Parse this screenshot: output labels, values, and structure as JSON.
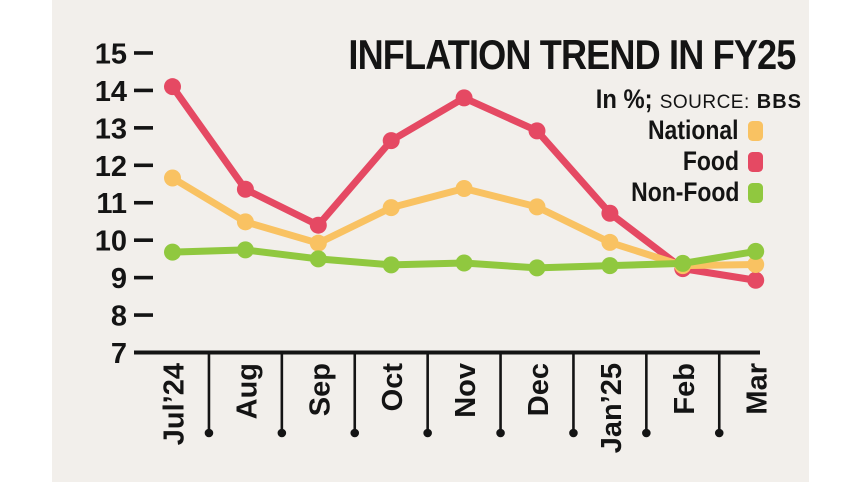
{
  "page": {
    "background": "#ffffff",
    "panel_background": "#F2EFEB",
    "text_color": "#141414",
    "axis_color": "#141414"
  },
  "header": {
    "title": "INFLATION TREND IN FY25",
    "unit_label": "In %;",
    "source_label": "SOURCE:",
    "source_value": "BBS"
  },
  "legend": {
    "position": "top-right",
    "items": [
      {
        "label": "National",
        "color": "#F9C262"
      },
      {
        "label": "Food",
        "color": "#E54963"
      },
      {
        "label": "Non-Food",
        "color": "#90C83F"
      }
    ]
  },
  "chart_data": {
    "type": "line",
    "title": "INFLATION TREND IN FY25",
    "subtitle": "In %; SOURCE: BBS",
    "xlabel": "",
    "ylabel": "",
    "categories": [
      "Jul’24",
      "Aug",
      "Sep",
      "Oct",
      "Nov",
      "Dec",
      "Jan’25",
      "Feb",
      "Mar"
    ],
    "yticks": [
      15,
      14,
      13,
      12,
      11,
      10,
      9,
      8,
      7
    ],
    "ylim": [
      7,
      15
    ],
    "grid": false,
    "legend_position": "top-right",
    "series": [
      {
        "name": "Food",
        "color": "#E54963",
        "values": [
          14.1,
          11.36,
          10.4,
          12.66,
          13.8,
          12.92,
          10.72,
          9.24,
          8.93
        ]
      },
      {
        "name": "National",
        "color": "#F9C262",
        "values": [
          11.66,
          10.49,
          9.92,
          10.87,
          11.38,
          10.89,
          9.94,
          9.32,
          9.35
        ]
      },
      {
        "name": "Non-Food",
        "color": "#90C83F",
        "values": [
          9.68,
          9.74,
          9.5,
          9.34,
          9.39,
          9.26,
          9.32,
          9.38,
          9.7
        ]
      }
    ]
  }
}
